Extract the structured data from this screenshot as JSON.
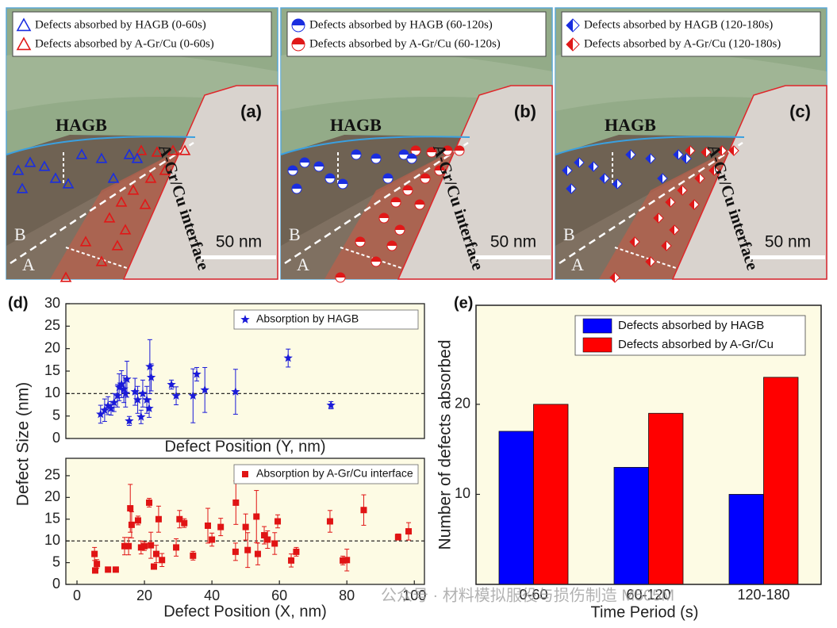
{
  "panels": [
    {
      "label": "(a)",
      "legend": [
        "Defects absorbed by HAGB (0-60s)",
        "Defects absorbed by A-Gr/Cu  (0-60s)"
      ],
      "hagb": "HAGB",
      "interface": "A-Gr/Cu interface",
      "scale": "50 nm",
      "b": "B",
      "a": "A"
    },
    {
      "label": "(b)",
      "legend": [
        "Defects absorbed by HAGB (60-120s)",
        "Defects absorbed by A-Gr/Cu  (60-120s)"
      ],
      "hagb": "HAGB",
      "interface": "A-Gr/Cu interface",
      "scale": "50 nm",
      "b": "B",
      "a": "A"
    },
    {
      "label": "(c)",
      "legend": [
        "Defects absorbed by HAGB (120-180s)",
        "Defects absorbed by A-Gr/Cu  (120-180s)"
      ],
      "hagb": "HAGB",
      "interface": "A-Gr/Cu interface",
      "scale": "50 nm",
      "b": "B",
      "a": "A"
    }
  ],
  "watermark": "公众号 · 材料模拟服役与损伤制造 M505M",
  "chart_data": [
    {
      "type": "scatter",
      "panel_label": "(d)",
      "ylabel": "Defect Size (nm)",
      "xlabel": "Defect Position (Y, nm)",
      "xlim": [
        -3.3,
        103
      ],
      "ylim": [
        0,
        30
      ],
      "yticks": [
        0,
        5,
        10,
        15,
        20,
        25,
        30
      ],
      "refline": 10,
      "series": [
        {
          "name": "Absorption by HAGB",
          "color": "#1a1ad8",
          "marker": "star",
          "x": [
            7,
            8.2,
            9.2,
            10.1,
            11,
            12,
            12.5,
            13.2,
            13.9,
            14.8,
            14.4,
            15.5,
            17.2,
            18,
            19,
            19.5,
            20.7,
            21.6,
            22,
            21.4,
            28,
            29.4,
            34.4,
            35.5,
            37.9,
            47,
            62.6,
            75.3
          ],
          "values": [
            5.4,
            6.3,
            7.3,
            6.7,
            8,
            9.5,
            11.4,
            12.1,
            11,
            13.2,
            10,
            3.9,
            10.4,
            8.6,
            4.8,
            10,
            8.6,
            16,
            13.6,
            6.7,
            12,
            9.5,
            9.5,
            14.3,
            10.8,
            10.4,
            17.9,
            7.4
          ],
          "errors": [
            2,
            2.5,
            2,
            1.5,
            2,
            2.5,
            3,
            3,
            3,
            4,
            3,
            1,
            3,
            3,
            1.5,
            3,
            3,
            6,
            3,
            2,
            1,
            2,
            6,
            1.5,
            5,
            5,
            2,
            0.8
          ]
        }
      ]
    },
    {
      "type": "scatter",
      "xlabel": "Defect Position (X, nm)",
      "xlim": [
        -3.3,
        103
      ],
      "xticks": [
        0,
        20,
        40,
        60,
        80,
        100
      ],
      "ylim": [
        0,
        29
      ],
      "yticks": [
        0,
        5,
        10,
        15,
        20,
        25
      ],
      "refline": 10,
      "series": [
        {
          "name": "Absorption by A-Gr/Cu interface",
          "color": "#e01414",
          "marker": "square",
          "x": [
            5.2,
            5.9,
            5.4,
            9.2,
            11.5,
            14.1,
            15.3,
            15.8,
            16.2,
            18.1,
            19,
            20,
            21.4,
            21.9,
            22.8,
            23.5,
            24.2,
            25.2,
            29.4,
            30.4,
            31.8,
            34.4,
            38.8,
            40,
            42.6,
            47,
            47.1,
            50,
            50.6,
            53.2,
            53.6,
            55.5,
            56.5,
            58.6,
            59.5,
            63.5,
            65,
            75,
            78.8,
            80,
            85,
            95.2,
            98.3
          ],
          "values": [
            7,
            4.7,
            3.2,
            3.4,
            3.4,
            8.8,
            8.8,
            17.5,
            13.7,
            14.7,
            8.5,
            8.8,
            18.8,
            9,
            4.1,
            7,
            15,
            5.6,
            8.5,
            15,
            14.1,
            6.6,
            13.5,
            10.3,
            13.2,
            7.5,
            18.8,
            13.2,
            7.9,
            15.6,
            7,
            11.3,
            10.3,
            9.4,
            14.5,
            5.5,
            7.5,
            14.5,
            5.5,
            5.6,
            17.1,
            10.9,
            12.2
          ],
          "errors": [
            1.5,
            1,
            0.5,
            0.5,
            0.5,
            2,
            2,
            5.5,
            3,
            1,
            1.5,
            1,
            1,
            3,
            0.5,
            2,
            3,
            1.5,
            2,
            2,
            1,
            1,
            4,
            1.5,
            2,
            2,
            5,
            3,
            4,
            6,
            2.5,
            2,
            2,
            2.5,
            1.5,
            1.5,
            1,
            2.5,
            1,
            2.5,
            3.5,
            0.7,
            2
          ]
        }
      ]
    },
    {
      "type": "bar",
      "panel_label": "(e)",
      "ylabel": "Number of defects absorbed",
      "xlabel": "Time Period (s)",
      "categories": [
        "0-60",
        "60-120",
        "120-180"
      ],
      "ylim": [
        0,
        31
      ],
      "yticks": [
        10,
        20
      ],
      "series": [
        {
          "name": "Defects absorbed by HAGB",
          "color": "#0000ff",
          "values": [
            17,
            13,
            10
          ]
        },
        {
          "name": "Defects absorbed by A-Gr/Cu",
          "color": "#ff0000",
          "values": [
            20,
            19,
            23
          ]
        }
      ]
    }
  ]
}
